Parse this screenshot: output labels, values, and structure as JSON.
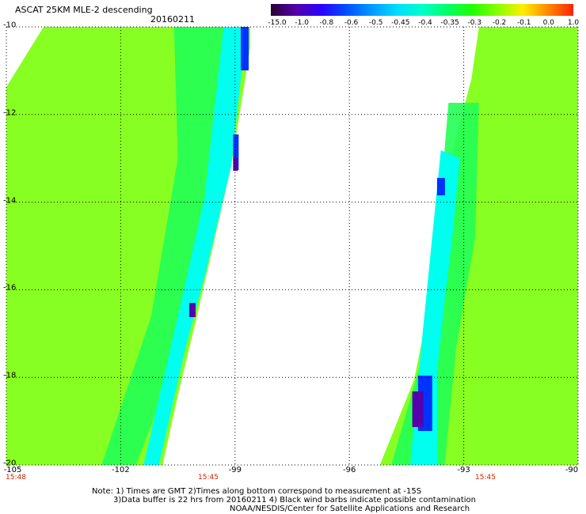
{
  "header": {
    "title": "ASCAT 25KM MLE-2 descending",
    "date": "20160211"
  },
  "colorbar": {
    "labels": [
      "-15.0",
      "-1.0",
      "-0.8",
      "-0.6",
      "-0.5",
      "-0.45",
      "-0.4",
      "-0.35",
      "-0.3",
      "-0.2",
      "-0.1",
      "0.0",
      "1.0"
    ],
    "colors": [
      "#2a0033",
      "#5500aa",
      "#2a00ff",
      "#0050ff",
      "#0099ff",
      "#00ddff",
      "#00ffcc",
      "#00ff66",
      "#22ff00",
      "#88ff00",
      "#ffee00",
      "#ff8800",
      "#ff2200"
    ]
  },
  "map": {
    "lon_range": [
      -105,
      -90
    ],
    "lat_range": [
      -20,
      -10
    ],
    "lon_ticks": [
      "-105",
      "-102",
      "-99",
      "-96",
      "-93",
      "-90"
    ],
    "lat_ticks": [
      "-10",
      "-12",
      "-14",
      "-16",
      "-18",
      "-20"
    ],
    "pass_times": [
      "15:48",
      "15:45",
      "15:45"
    ],
    "colors": {
      "background": "#88ff22",
      "green": "#44ff11",
      "greenish": "#22ff55",
      "cyan": "#00ffee",
      "lightblue": "#00ccff",
      "blue": "#0033ff",
      "purple": "#5500aa",
      "grid": "#000000"
    }
  },
  "notes": {
    "line1": "Note: 1) Times are GMT 2)Times along bottom correspond to measurement at -15S",
    "line2": "3)Data buffer is 22 hrs from 20160211 4) Black wind barbs indicate possible contamination",
    "line3": "NOAA/NESDIS/Center for Satellite Applications and Research"
  }
}
